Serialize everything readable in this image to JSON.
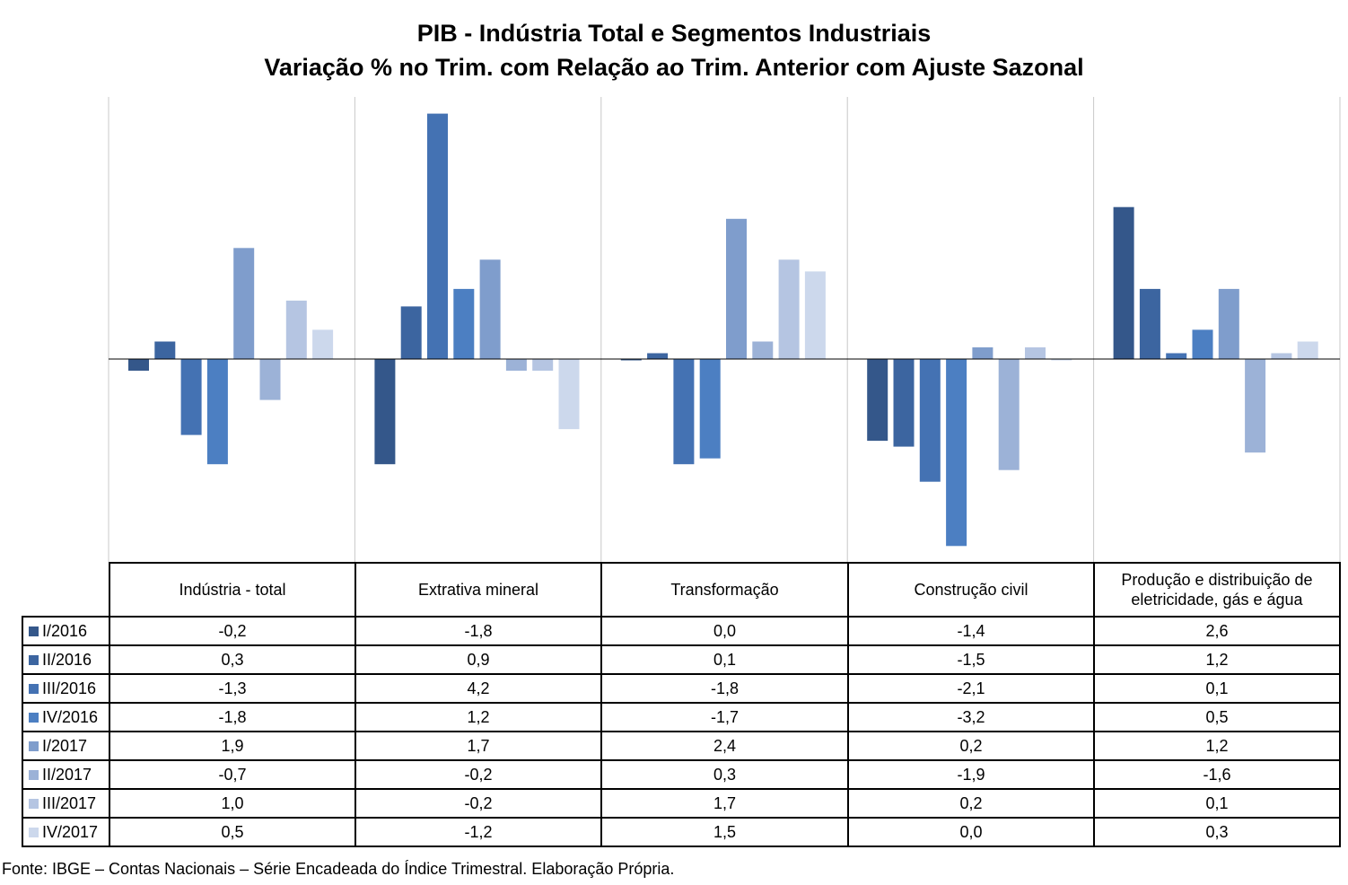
{
  "title_line1": "PIB - Indústria Total e Segmentos Industriais",
  "title_line2": "Variação % no Trim. com Relação ao Trim. Anterior com Ajuste Sazonal",
  "source": "Fonte: IBGE – Contas Nacionais – Série Encadeada do Índice Trimestral. Elaboração Própria.",
  "chart_data": {
    "type": "bar",
    "categories": [
      "Indústria - total",
      "Extrativa mineral",
      "Transformação",
      "Construção civil",
      "Produção e distribuição de eletricidade, gás e água"
    ],
    "series": [
      {
        "name": "I/2016",
        "color": "#34578a",
        "values": [
          -0.2,
          -1.8,
          0.0,
          -1.4,
          2.6
        ]
      },
      {
        "name": "II/2016",
        "color": "#3c65a0",
        "values": [
          0.3,
          0.9,
          0.1,
          -1.5,
          1.2
        ]
      },
      {
        "name": "III/2016",
        "color": "#4472b3",
        "values": [
          -1.3,
          4.2,
          -1.8,
          -2.1,
          0.1
        ]
      },
      {
        "name": "IV/2016",
        "color": "#4c7fc2",
        "values": [
          -1.8,
          1.2,
          -1.7,
          -3.2,
          0.5
        ]
      },
      {
        "name": "I/2017",
        "color": "#7f9dcc",
        "values": [
          1.9,
          1.7,
          2.4,
          0.2,
          1.2
        ]
      },
      {
        "name": "II/2017",
        "color": "#9cb2d7",
        "values": [
          -0.7,
          -0.2,
          0.3,
          -1.9,
          -1.6
        ]
      },
      {
        "name": "III/2017",
        "color": "#b5c5e2",
        "values": [
          1.0,
          -0.2,
          1.7,
          0.2,
          0.1
        ]
      },
      {
        "name": "IV/2017",
        "color": "#ccd8ec",
        "values": [
          0.5,
          -1.2,
          1.5,
          0.0,
          0.3
        ]
      }
    ],
    "table": {
      "I/2016": [
        "-0,2",
        "-1,8",
        "0,0",
        "-1,4",
        "2,6"
      ],
      "II/2016": [
        "0,3",
        "0,9",
        "0,1",
        "-1,5",
        "1,2"
      ],
      "III/2016": [
        "-1,3",
        "4,2",
        "-1,8",
        "-2,1",
        "0,1"
      ],
      "IV/2016": [
        "-1,8",
        "1,2",
        "-1,7",
        "-3,2",
        "0,5"
      ],
      "I/2017": [
        "1,9",
        "1,7",
        "2,4",
        "0,2",
        "1,2"
      ],
      "II/2017": [
        "-0,7",
        "-0,2",
        "0,3",
        "-1,9",
        "-1,6"
      ],
      "III/2017": [
        "1,0",
        "-0,2",
        "1,7",
        "0,2",
        "0,1"
      ],
      "IV/2017": [
        "0,5",
        "-1,2",
        "1,5",
        "0,0",
        "0,3"
      ]
    },
    "ylim": [
      -3.5,
      4.4
    ],
    "grid": false,
    "legend": "data-table"
  }
}
